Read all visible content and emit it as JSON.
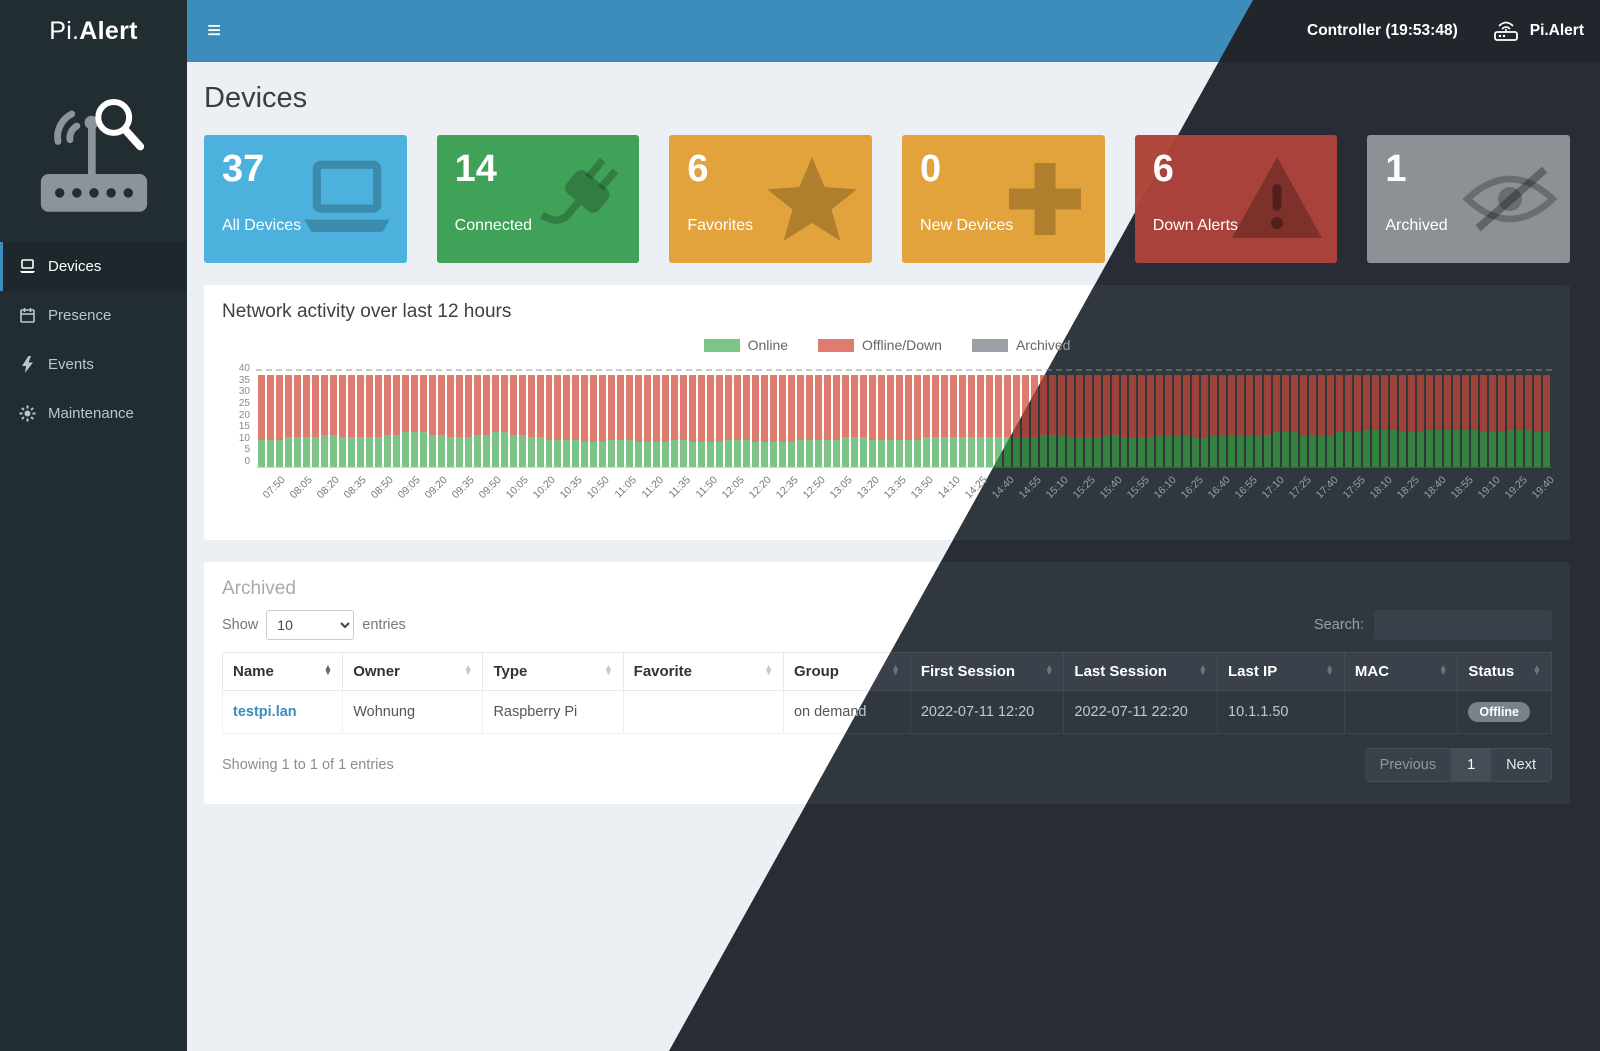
{
  "navbar": {
    "brand_pi": "Pi.",
    "brand_alert": "Alert",
    "menu_icon": "≡",
    "controller": "Controller (19:53:48)",
    "app_name": "Pi.Alert"
  },
  "sidebar": {
    "items": [
      {
        "label": "Devices",
        "icon": "laptop-icon",
        "active": true
      },
      {
        "label": "Presence",
        "icon": "calendar-icon",
        "active": false
      },
      {
        "label": "Events",
        "icon": "bolt-icon",
        "active": false
      },
      {
        "label": "Maintenance",
        "icon": "gear-icon",
        "active": false
      }
    ]
  },
  "page": {
    "title": "Devices"
  },
  "info_boxes": [
    {
      "value": "37",
      "label": "All Devices",
      "color": "#4cb2dd",
      "icon": "laptop-icon"
    },
    {
      "value": "14",
      "label": "Connected",
      "color": "#40a158",
      "icon": "plug-icon"
    },
    {
      "value": "6",
      "label": "Favorites",
      "color": "#e2a33c",
      "icon": "star-icon"
    },
    {
      "value": "0",
      "label": "New Devices",
      "color": "#e2a33c",
      "icon": "plus-icon"
    },
    {
      "value": "6",
      "label": "Down Alerts",
      "color": "#a8423a",
      "icon": "warning-triangle-icon"
    },
    {
      "value": "1",
      "label": "Archived",
      "color": "#9b9b9b",
      "icon": "eye-slash-icon"
    }
  ],
  "chart_panel": {
    "title": "Network activity over last 12 hours"
  },
  "chart_data": {
    "type": "bar",
    "stacked": true,
    "title": "Network activity over last 12 hours",
    "legend": [
      {
        "label": "Online",
        "color": "#7cc587"
      },
      {
        "label": "Offline/Down",
        "color": "#e07b70"
      },
      {
        "label": "Archived",
        "color": "#9aa0a5"
      }
    ],
    "ylim": [
      0,
      40
    ],
    "yticks": [
      "40",
      "35",
      "30",
      "25",
      "20",
      "15",
      "10",
      "5",
      "0"
    ],
    "x_labels": [
      "07:50",
      "08:05",
      "08:20",
      "08:35",
      "08:50",
      "09:05",
      "09:20",
      "09:35",
      "09:50",
      "10:05",
      "10:20",
      "10:35",
      "10:50",
      "11:05",
      "11:20",
      "11:35",
      "11:50",
      "12:05",
      "12:20",
      "12:35",
      "12:50",
      "13:05",
      "13:20",
      "13:35",
      "13:50",
      "14:10",
      "14:25",
      "14:40",
      "14:55",
      "15:10",
      "15:25",
      "15:40",
      "15:55",
      "16:10",
      "16:25",
      "16:40",
      "16:55",
      "17:10",
      "17:25",
      "17:40",
      "17:55",
      "18:10",
      "18:25",
      "18:40",
      "18:55",
      "19:10",
      "19:25",
      "19:40"
    ],
    "bars_per_label": 3,
    "total_devices": 37,
    "archived_per_bar": 0,
    "offline_rule": "offline = total_devices - online",
    "online": [
      11,
      11,
      11,
      12,
      12,
      12,
      12,
      13,
      13,
      12,
      12,
      12,
      12,
      12,
      13,
      13,
      14,
      14,
      14,
      13,
      13,
      12,
      12,
      12,
      13,
      13,
      14,
      14,
      13,
      13,
      12,
      12,
      11,
      11,
      11,
      11,
      10,
      10,
      10,
      11,
      11,
      11,
      10,
      10,
      10,
      10,
      11,
      11,
      10,
      10,
      10,
      10,
      11,
      11,
      11,
      10,
      10,
      10,
      10,
      10,
      11,
      11,
      11,
      11,
      11,
      12,
      12,
      12,
      11,
      11,
      11,
      11,
      11,
      11,
      12,
      12,
      12,
      12,
      12,
      12,
      12,
      12,
      12,
      12,
      12,
      12,
      12,
      13,
      13,
      13,
      12,
      12,
      12,
      12,
      13,
      13,
      12,
      12,
      12,
      12,
      13,
      13,
      13,
      13,
      12,
      12,
      13,
      13,
      13,
      13,
      13,
      13,
      13,
      14,
      14,
      14,
      13,
      13,
      13,
      13,
      14,
      14,
      14,
      15,
      15,
      15,
      15,
      14,
      14,
      14,
      15,
      15,
      15,
      15,
      15,
      15,
      14,
      14,
      14,
      15,
      15,
      15,
      14,
      14
    ]
  },
  "table_panel": {
    "title": "Archived",
    "show_label": "Show",
    "page_length": "10",
    "entries_label": "entries",
    "search_label": "Search:",
    "search_value": "",
    "columns": [
      "Name",
      "Owner",
      "Type",
      "Favorite",
      "Group",
      "First Session",
      "Last Session",
      "Last IP",
      "MAC",
      "Status"
    ],
    "rows": [
      [
        "testpi.lan",
        "Wohnung",
        "Raspberry Pi",
        "",
        "on demand",
        "2022-07-11 12:20",
        "2022-07-11 22:20",
        "10.1.1.50",
        "",
        "Offline"
      ]
    ],
    "info": "Showing 1 to 1 of 1 entries",
    "pagination": {
      "previous": "Previous",
      "page": "1",
      "next": "Next"
    }
  }
}
